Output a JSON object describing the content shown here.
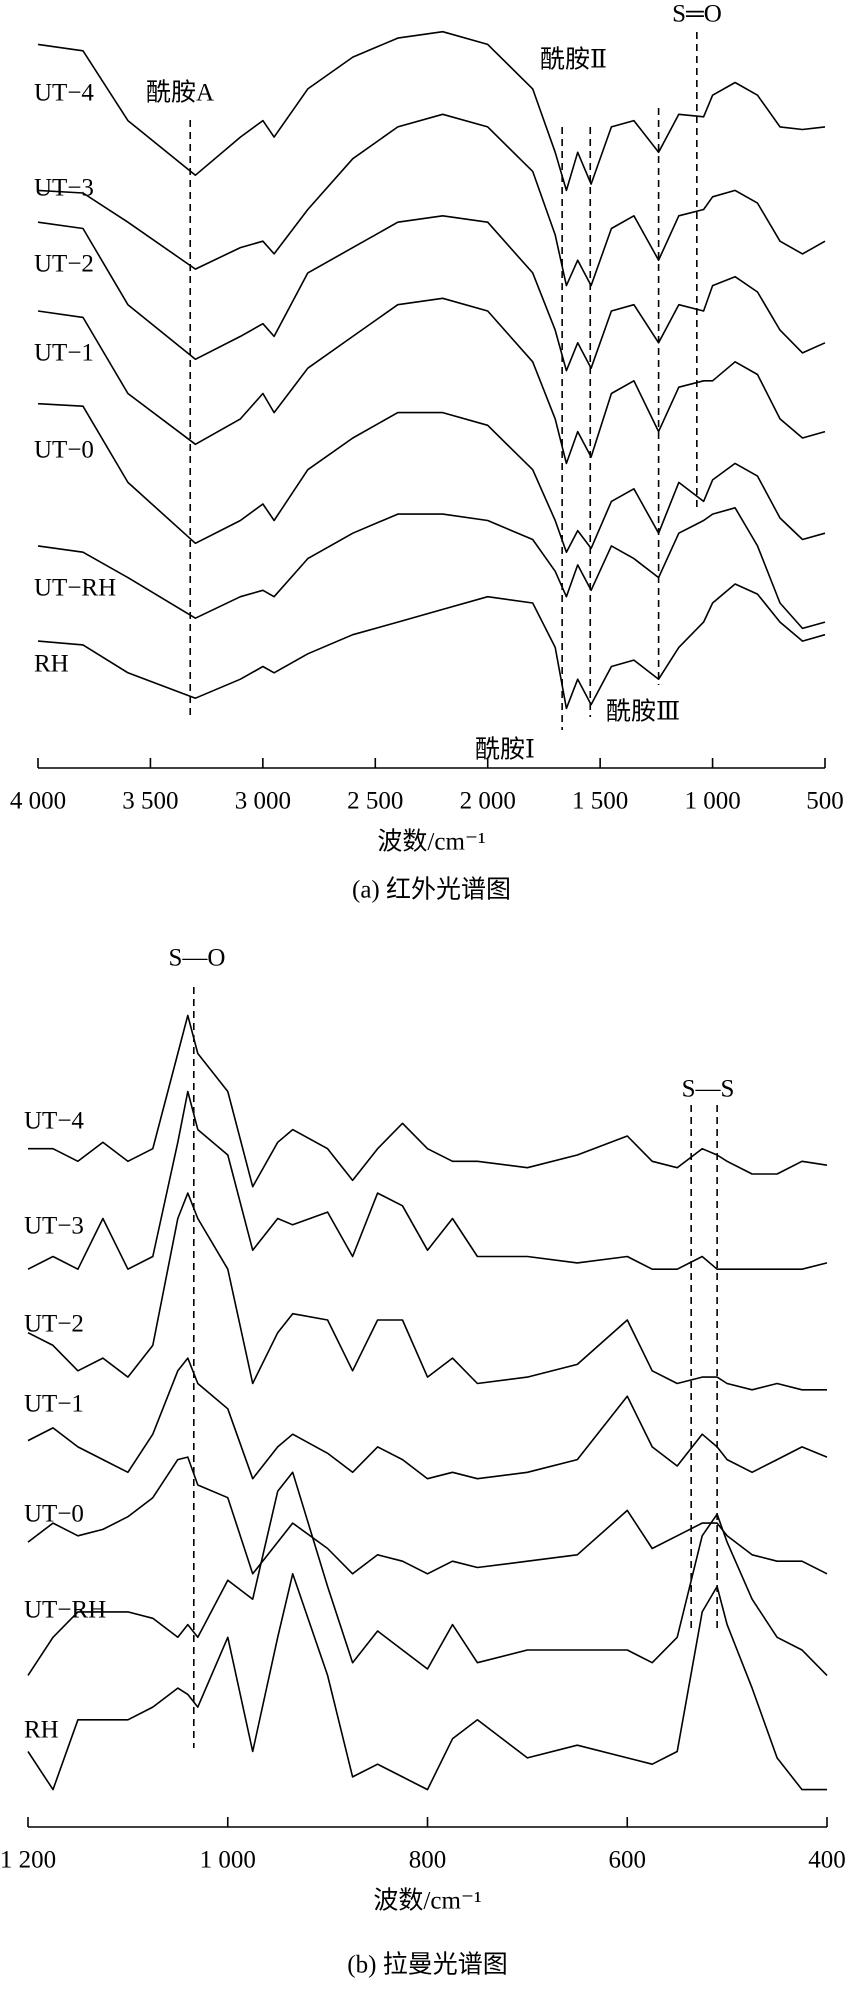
{
  "chart_data": [
    {
      "type": "line",
      "color": "#000000",
      "xlabel": "波数/cm⁻¹",
      "caption": "(a) 红外光谱图",
      "xlim": [
        4000,
        500
      ],
      "ylim": [
        0,
        590
      ],
      "xticks": [
        {
          "value": 4000,
          "label": "4 000"
        },
        {
          "value": 3500,
          "label": "3 500"
        },
        {
          "value": 3000,
          "label": "3 000"
        },
        {
          "value": 2500,
          "label": "2 500"
        },
        {
          "value": 2000,
          "label": "2 000"
        },
        {
          "value": 1500,
          "label": "1 500"
        },
        {
          "value": 1000,
          "label": "1 000"
        },
        500
      ],
      "x": [
        4000,
        3800,
        3600,
        3300,
        3100,
        3000,
        2950,
        2800,
        2600,
        2400,
        2200,
        2000,
        1800,
        1700,
        1650,
        1600,
        1540,
        1450,
        1350,
        1240,
        1150,
        1040,
        1000,
        900,
        800,
        700,
        600,
        500
      ],
      "series": [
        {
          "name": "UT−4",
          "values": [
            555,
            550,
            495,
            452,
            482,
            495,
            482,
            520,
            545,
            560,
            565,
            555,
            520,
            470,
            440,
            470,
            445,
            490,
            495,
            470,
            500,
            498,
            515,
            525,
            515,
            490,
            488,
            490
          ]
        },
        {
          "name": "UT−3",
          "values": [
            440,
            438,
            415,
            378,
            395,
            400,
            390,
            425,
            465,
            490,
            500,
            490,
            455,
            405,
            365,
            385,
            365,
            410,
            420,
            385,
            420,
            425,
            435,
            440,
            430,
            400,
            390,
            400
          ]
        },
        {
          "name": "UT−2",
          "values": [
            415,
            410,
            350,
            307,
            325,
            335,
            325,
            375,
            395,
            415,
            420,
            415,
            375,
            330,
            298,
            320,
            300,
            345,
            350,
            320,
            350,
            345,
            365,
            372,
            360,
            330,
            312,
            320
          ]
        },
        {
          "name": "UT−1",
          "values": [
            345,
            340,
            280,
            240,
            260,
            280,
            265,
            300,
            325,
            350,
            355,
            345,
            305,
            260,
            225,
            250,
            230,
            280,
            290,
            250,
            285,
            290,
            290,
            305,
            295,
            260,
            245,
            250
          ]
        },
        {
          "name": "UT−0",
          "values": [
            272,
            270,
            210,
            162,
            180,
            193,
            180,
            220,
            245,
            265,
            265,
            255,
            220,
            180,
            155,
            172,
            158,
            195,
            205,
            170,
            210,
            195,
            212,
            225,
            215,
            182,
            165,
            170
          ]
        },
        {
          "name": "UT−RH",
          "values": [
            160,
            155,
            135,
            103,
            120,
            125,
            120,
            150,
            170,
            185,
            185,
            180,
            165,
            140,
            120,
            145,
            125,
            160,
            150,
            135,
            170,
            180,
            185,
            190,
            160,
            115,
            95,
            100
          ]
        },
        {
          "name": "RH",
          "values": [
            85,
            82,
            60,
            40,
            55,
            65,
            60,
            75,
            90,
            100,
            110,
            120,
            115,
            80,
            32,
            55,
            35,
            65,
            70,
            55,
            80,
            100,
            115,
            130,
            122,
            100,
            85,
            90
          ]
        }
      ],
      "annotations": [
        {
          "text": "酰胺A",
          "x": [
            3323
          ]
        },
        {
          "text": "酰胺Ⅰ",
          "x": [
            1669
          ]
        },
        {
          "text": "酰胺Ⅱ",
          "x": [
            1544
          ]
        },
        {
          "text": "酰胺Ⅲ",
          "x": [
            1240
          ]
        },
        {
          "text": "S═O",
          "x": [
            1070
          ]
        }
      ]
    },
    {
      "type": "line",
      "color": "#000000",
      "xlabel": "波数/cm⁻¹",
      "caption": "(b) 拉曼光谱图",
      "xlim": [
        1200,
        400
      ],
      "ylim": [
        0,
        650
      ],
      "xticks": [
        {
          "value": 1200,
          "label": "1 200"
        },
        {
          "value": 1000,
          "label": "1 000"
        },
        800,
        600,
        400
      ],
      "x": [
        1200,
        1175,
        1150,
        1125,
        1100,
        1075,
        1050,
        1040,
        1030,
        1000,
        975,
        950,
        935,
        900,
        875,
        850,
        825,
        800,
        775,
        750,
        700,
        650,
        600,
        575,
        550,
        525,
        510,
        500,
        475,
        450,
        425,
        400
      ],
      "series": [
        {
          "name": "UT−4",
          "values": [
            525,
            525,
            515,
            530,
            515,
            525,
            600,
            630,
            600,
            570,
            495,
            530,
            540,
            525,
            500,
            525,
            545,
            525,
            515,
            515,
            510,
            520,
            535,
            515,
            510,
            525,
            520,
            515,
            505,
            505,
            515,
            512
          ]
        },
        {
          "name": "UT−3",
          "values": [
            430,
            440,
            430,
            470,
            430,
            440,
            530,
            570,
            540,
            520,
            445,
            470,
            465,
            475,
            440,
            490,
            480,
            445,
            470,
            440,
            440,
            435,
            440,
            430,
            430,
            440,
            430,
            430,
            430,
            430,
            430,
            435
          ]
        },
        {
          "name": "UT−2",
          "values": [
            380,
            370,
            350,
            360,
            345,
            370,
            470,
            490,
            470,
            430,
            340,
            380,
            395,
            390,
            350,
            390,
            390,
            345,
            360,
            340,
            345,
            355,
            390,
            350,
            340,
            345,
            345,
            340,
            335,
            340,
            335,
            335
          ]
        },
        {
          "name": "UT−1",
          "values": [
            295,
            305,
            290,
            280,
            270,
            300,
            350,
            360,
            340,
            320,
            265,
            290,
            300,
            285,
            270,
            290,
            280,
            265,
            270,
            265,
            270,
            280,
            330,
            290,
            275,
            300,
            290,
            280,
            270,
            280,
            290,
            282
          ]
        },
        {
          "name": "UT−0",
          "values": [
            215,
            230,
            220,
            225,
            235,
            250,
            280,
            282,
            260,
            250,
            190,
            215,
            230,
            210,
            190,
            205,
            200,
            190,
            200,
            195,
            200,
            205,
            240,
            210,
            220,
            230,
            230,
            220,
            205,
            200,
            200,
            190
          ]
        },
        {
          "name": "UT−RH",
          "values": [
            110,
            140,
            160,
            160,
            160,
            155,
            140,
            150,
            140,
            185,
            170,
            255,
            270,
            180,
            120,
            145,
            130,
            115,
            150,
            120,
            130,
            130,
            130,
            120,
            140,
            220,
            237,
            215,
            170,
            140,
            130,
            110
          ]
        },
        {
          "name": "RH",
          "values": [
            50,
            20,
            75,
            75,
            75,
            85,
            100,
            95,
            85,
            140,
            50,
            140,
            190,
            110,
            30,
            40,
            30,
            20,
            60,
            75,
            45,
            55,
            45,
            40,
            50,
            160,
            180,
            150,
            100,
            45,
            20,
            20
          ]
        }
      ],
      "annotations": [
        {
          "text": "S—O",
          "x": [
            1034
          ]
        },
        {
          "text": "S—S",
          "x": [
            536,
            510
          ]
        }
      ]
    }
  ]
}
